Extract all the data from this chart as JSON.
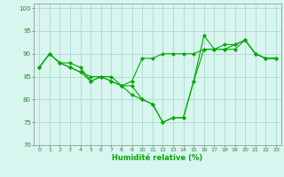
{
  "title": "",
  "xlabel": "Humidité relative (%)",
  "ylabel": "",
  "background_color": "#d8f5f0",
  "grid_color": "#aaddcc",
  "line_color": "#00aa00",
  "xlim": [
    -0.5,
    23.5
  ],
  "ylim": [
    70,
    101
  ],
  "yticks": [
    70,
    75,
    80,
    85,
    90,
    95,
    100
  ],
  "xticks": [
    0,
    1,
    2,
    3,
    4,
    5,
    6,
    7,
    8,
    9,
    10,
    11,
    12,
    13,
    14,
    15,
    16,
    17,
    18,
    19,
    20,
    21,
    22,
    23
  ],
  "series1": [
    87,
    90,
    88,
    88,
    87,
    84,
    85,
    85,
    83,
    84,
    89,
    89,
    90,
    90,
    90,
    90,
    91,
    91,
    91,
    92,
    93,
    90,
    89,
    89
  ],
  "series2": [
    87,
    90,
    88,
    87,
    86,
    84,
    85,
    84,
    83,
    81,
    80,
    79,
    75,
    76,
    76,
    84,
    94,
    91,
    91,
    91,
    93,
    90,
    89,
    89
  ],
  "series3": [
    87,
    90,
    88,
    87,
    86,
    85,
    85,
    84,
    83,
    83,
    80,
    79,
    75,
    76,
    76,
    84,
    91,
    91,
    92,
    92,
    93,
    90,
    89,
    89
  ]
}
